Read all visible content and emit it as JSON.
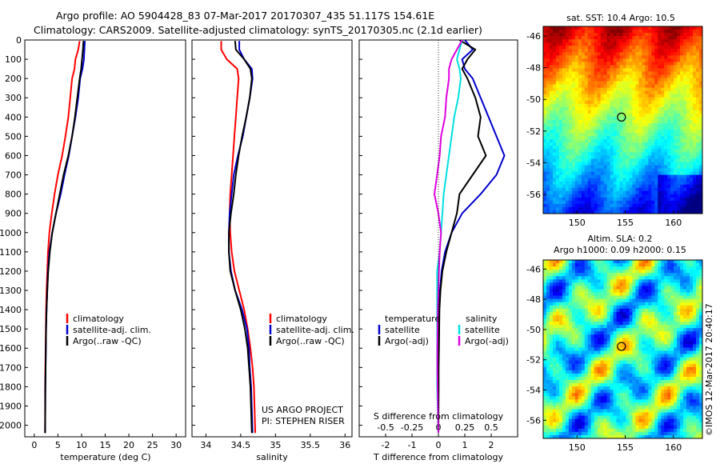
{
  "header": {
    "line1": "Argo profile: AO 5904428_83 07-Mar-2017 20170307_435 51.117S 154.61E",
    "line2": "Climatology: CARS2009. Satellite-adjusted climatology: synTS_20170305.nc (2.1d earlier)"
  },
  "credit": "©IMOS 12-Mar-2017 20:40:17",
  "project_note": {
    "line1": "US ARGO PROJECT",
    "line2": "PI: STEPHEN RISER"
  },
  "colors": {
    "climatology": "#ff0000",
    "satellite": "#0000cc",
    "argo": "#000000",
    "sat_s": "#00e0e0",
    "argo_s": "#e000e0"
  },
  "chart_data": [
    {
      "type": "line",
      "xlabel": "temperature (deg C)",
      "xticks": [
        "0",
        "5",
        "10",
        "15",
        "20",
        "25",
        "30"
      ],
      "yticks": [
        "0",
        "100",
        "200",
        "300",
        "400",
        "500",
        "600",
        "700",
        "800",
        "900",
        "1000",
        "1100",
        "1200",
        "1300",
        "1400",
        "1500",
        "1600",
        "1700",
        "1800",
        "1900",
        "2000"
      ],
      "xlim": [
        -2,
        32
      ],
      "ylim": [
        2060,
        0
      ],
      "legend": [
        "climatology",
        "satellite-adj. clim.",
        "Argo(..raw -QC)"
      ],
      "series": [
        {
          "name": "climatology",
          "color": "#ff0000",
          "x": [
            9.6,
            9.3,
            8.7,
            8.5,
            8.0,
            7.6,
            7.2,
            6.6,
            5.9,
            5.0,
            4.3,
            3.7,
            3.2,
            2.9,
            2.75,
            2.6,
            2.5,
            2.45,
            2.4,
            2.35,
            2.3,
            2.3
          ],
          "y": [
            5,
            50,
            100,
            150,
            200,
            300,
            400,
            500,
            600,
            700,
            800,
            900,
            1000,
            1100,
            1200,
            1300,
            1400,
            1500,
            1600,
            1700,
            1800,
            2040
          ]
        },
        {
          "name": "satellite-adj. clim.",
          "color": "#0000cc",
          "x": [
            10.7,
            10.6,
            10.5,
            10.2,
            9.7,
            9.3,
            8.7,
            8.0,
            7.3,
            6.4,
            5.6,
            4.6,
            3.8,
            3.2,
            2.9,
            2.75,
            2.6,
            2.5,
            2.45,
            2.4,
            2.35,
            2.3
          ],
          "y": [
            5,
            50,
            100,
            150,
            200,
            300,
            400,
            500,
            600,
            700,
            800,
            900,
            1000,
            1100,
            1200,
            1300,
            1400,
            1500,
            1600,
            1700,
            1800,
            2040
          ]
        },
        {
          "name": "Argo(..raw -QC)",
          "color": "#000000",
          "x": [
            10.4,
            10.3,
            10.1,
            9.9,
            9.6,
            9.1,
            8.6,
            8.0,
            7.2,
            6.2,
            5.4,
            4.6,
            3.8,
            3.3,
            2.95,
            2.75,
            2.6,
            2.5,
            2.45,
            2.4,
            2.35,
            2.3
          ],
          "y": [
            5,
            50,
            100,
            150,
            200,
            300,
            400,
            500,
            600,
            700,
            800,
            900,
            1000,
            1100,
            1200,
            1300,
            1400,
            1500,
            1600,
            1700,
            1800,
            2040
          ]
        }
      ]
    },
    {
      "type": "line",
      "xlabel": "salinity",
      "xticks": [
        "34",
        "34.5",
        "35",
        "35.5",
        "36"
      ],
      "xlim": [
        33.8,
        36.1
      ],
      "ylim": [
        2060,
        0
      ],
      "legend": [
        "climatology",
        "satellite-adj. clim.",
        "Argo(..raw -QC)"
      ],
      "series": [
        {
          "name": "climatology",
          "color": "#ff0000",
          "x": [
            34.22,
            34.22,
            34.3,
            34.45,
            34.47,
            34.45,
            34.43,
            34.41,
            34.39,
            34.37,
            34.35,
            34.34,
            34.35,
            34.37,
            34.41,
            34.48,
            34.55,
            34.6,
            34.64,
            34.67,
            34.69,
            34.71
          ],
          "y": [
            5,
            50,
            100,
            150,
            200,
            300,
            400,
            500,
            600,
            700,
            800,
            900,
            1000,
            1100,
            1200,
            1300,
            1400,
            1500,
            1600,
            1700,
            1800,
            2040
          ]
        },
        {
          "name": "satellite-adj. clim.",
          "color": "#0000cc",
          "x": [
            34.48,
            34.48,
            34.55,
            34.66,
            34.67,
            34.63,
            34.58,
            34.53,
            34.46,
            34.4,
            34.37,
            34.34,
            34.33,
            34.33,
            34.36,
            34.42,
            34.52,
            34.59,
            34.62,
            34.63,
            34.65,
            34.67
          ],
          "y": [
            5,
            50,
            100,
            150,
            200,
            300,
            400,
            500,
            600,
            700,
            800,
            900,
            1000,
            1100,
            1200,
            1300,
            1400,
            1500,
            1600,
            1700,
            1800,
            2040
          ]
        },
        {
          "name": "Argo(..raw -QC)",
          "color": "#000000",
          "x": [
            34.42,
            34.43,
            34.55,
            34.64,
            34.66,
            34.63,
            34.58,
            34.52,
            34.47,
            34.43,
            34.4,
            34.36,
            34.33,
            34.33,
            34.35,
            34.42,
            34.5,
            34.56,
            34.6,
            34.62,
            34.64,
            34.66
          ],
          "y": [
            5,
            50,
            100,
            150,
            200,
            300,
            400,
            500,
            600,
            700,
            800,
            900,
            1000,
            1100,
            1200,
            1300,
            1400,
            1500,
            1600,
            1700,
            1800,
            2040
          ]
        }
      ]
    },
    {
      "type": "line",
      "xlabel": "T difference from climatology",
      "xlabel_top": "S difference from climatology",
      "xticks": [
        "-2",
        "-1",
        "0",
        "1",
        "2"
      ],
      "xticks_s": [
        "-0.5",
        "-0.25",
        "0",
        "0.25",
        "0.5"
      ],
      "xlim": [
        -3,
        3
      ],
      "ylim": [
        2060,
        0
      ],
      "legend_t_title": "temperature",
      "legend_s_title": "salinity",
      "legend_t": [
        "satellite",
        "Argo(-adj)"
      ],
      "legend_s": [
        "satellite",
        "Argo(-adj)"
      ],
      "series": [
        {
          "name": "satellite",
          "color": "#0000cc",
          "x": [
            1.0,
            1.3,
            0.9,
            1.0,
            1.3,
            1.6,
            1.9,
            2.2,
            2.5,
            2.2,
            1.6,
            0.9,
            0.5,
            0.25,
            0.12,
            0.06,
            0.03,
            0.02,
            0.01,
            0,
            0,
            0
          ],
          "y": [
            0,
            50,
            100,
            150,
            200,
            300,
            400,
            500,
            600,
            700,
            800,
            900,
            1000,
            1100,
            1200,
            1300,
            1400,
            1500,
            1600,
            1700,
            1800,
            2040
          ]
        },
        {
          "name": "Argo(-adj)",
          "color": "#000000",
          "x": [
            0.8,
            1.4,
            1.1,
            0.9,
            1.1,
            1.4,
            1.6,
            1.5,
            1.8,
            1.3,
            0.8,
            0.7,
            0.5,
            0.3,
            0.15,
            0.08,
            0.04,
            0.03,
            0.02,
            0.01,
            0.01,
            0
          ],
          "y": [
            0,
            50,
            100,
            150,
            200,
            300,
            400,
            500,
            600,
            700,
            800,
            900,
            1000,
            1100,
            1200,
            1300,
            1400,
            1500,
            1600,
            1700,
            1800,
            2040
          ]
        },
        {
          "name": "satellite",
          "color": "#00e0e0",
          "x": [
            0.9,
            0.8,
            0.7,
            0.8,
            0.85,
            0.75,
            0.6,
            0.5,
            0.4,
            0.3,
            0.2,
            0.15,
            0.1,
            0.05,
            -0.05,
            -0.05,
            -0.05,
            -0.05,
            -0.05,
            -0.05,
            -0.05,
            0
          ],
          "y": [
            0,
            50,
            100,
            150,
            200,
            300,
            400,
            500,
            600,
            700,
            800,
            900,
            1000,
            1100,
            1200,
            1300,
            1400,
            1500,
            1600,
            1700,
            1800,
            2040
          ]
        },
        {
          "name": "Argo(-adj)",
          "color": "#e000e0",
          "x": [
            0.9,
            0.7,
            0.5,
            0.4,
            0.4,
            0.3,
            0.25,
            0.1,
            0.05,
            -0.05,
            -0.15,
            0.0,
            0.1,
            0.05,
            0.02,
            0.0,
            -0.02,
            -0.03,
            -0.04,
            -0.04,
            -0.03,
            0
          ],
          "y": [
            0,
            50,
            100,
            150,
            200,
            300,
            400,
            500,
            600,
            700,
            800,
            900,
            1000,
            1100,
            1200,
            1300,
            1400,
            1500,
            1600,
            1700,
            1800,
            2040
          ]
        }
      ]
    },
    {
      "type": "heatmap",
      "title": "sat. SST: 10.4 Argo: 10.5",
      "xticks": [
        "150",
        "155",
        "160"
      ],
      "yticks": [
        "-46",
        "-48",
        "-50",
        "-52",
        "-54",
        "-56"
      ],
      "xlim": [
        146.5,
        163
      ],
      "ylim": [
        -57.2,
        -45.4
      ],
      "marker": {
        "lon": 154.61,
        "lat": -51.117
      }
    },
    {
      "type": "heatmap",
      "title_line1": "Altim. SLA: 0.2",
      "title_line2": "Argo h1000: 0.09 h2000: 0.15",
      "xticks": [
        "150",
        "155",
        "160"
      ],
      "yticks": [
        "-46",
        "-48",
        "-50",
        "-52",
        "-54",
        "-56"
      ],
      "xlim": [
        146.5,
        163
      ],
      "ylim": [
        -57.2,
        -45.4
      ],
      "marker": {
        "lon": 154.61,
        "lat": -51.117
      }
    }
  ]
}
